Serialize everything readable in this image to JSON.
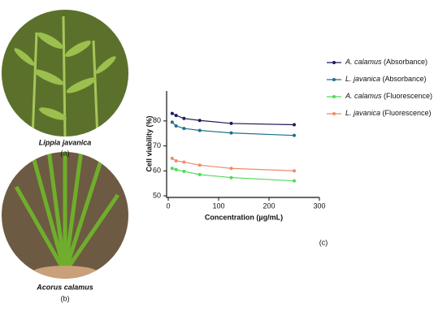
{
  "panels": [
    {
      "caption": "Lippia javanica",
      "label": "(a)"
    },
    {
      "caption": "Acorus calamus",
      "label": "(b)"
    }
  ],
  "chart_data": {
    "type": "line",
    "panel_label": "(c)",
    "x_label": "Concentration (µg/mL)",
    "y_label": "Cell viability (%)",
    "x": [
      7.8,
      15.6,
      31.25,
      62.5,
      125,
      250
    ],
    "series": [
      {
        "name": "A. calamus (Absorbance)",
        "color": "#1f1a5c",
        "values": [
          83,
          82.2,
          81,
          80.2,
          79,
          78.5
        ]
      },
      {
        "name": "L. javanica (Absorbance)",
        "color": "#1f6e8c",
        "values": [
          79.5,
          78,
          77,
          76.2,
          75.2,
          74.2
        ]
      },
      {
        "name": "A. calamus (Fluorescence)",
        "color": "#4ddc57",
        "values": [
          61,
          60.5,
          59.8,
          58.5,
          57.3,
          56
        ]
      },
      {
        "name": "L. javanica (Fluorescence)",
        "color": "#ef8a6e",
        "values": [
          65,
          64,
          63.5,
          62.3,
          61,
          60
        ]
      }
    ],
    "xlim": [
      0,
      300
    ],
    "xticks": [
      0,
      100,
      200,
      300
    ],
    "ylim": [
      50,
      92
    ],
    "yticks": [
      50,
      60,
      70,
      80
    ]
  }
}
